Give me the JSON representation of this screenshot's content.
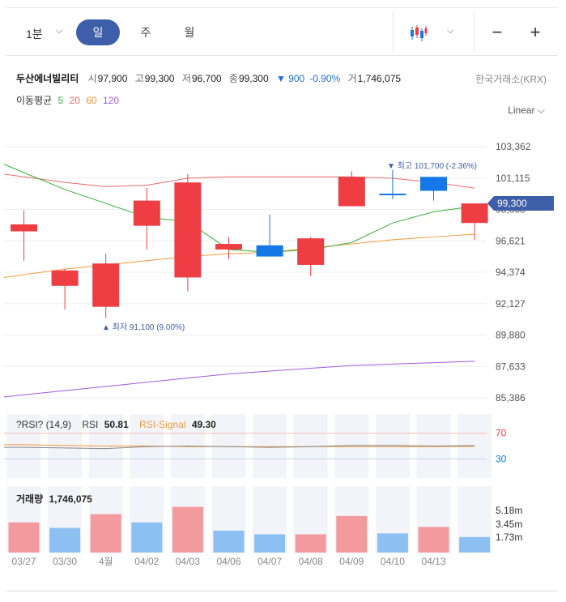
{
  "toolbar": {
    "interval_label": "1분",
    "tabs": [
      "일",
      "주",
      "월"
    ],
    "active_tab": "일",
    "chart_type_icon": "candlestick-icon",
    "zoom_out_label": "−",
    "zoom_in_label": "+"
  },
  "stock": {
    "name": "두산에너빌리티",
    "open_label": "시",
    "open": "97,900",
    "high_label": "고",
    "high": "99,300",
    "low_label": "저",
    "low": "96,700",
    "close_label": "종",
    "close": "99,300",
    "change": "▼ 900",
    "change_pct": "-0.90%",
    "volume_label": "거",
    "volume": "1,746,075",
    "exchange": "한국거래소(KRX)"
  },
  "ma_legend": {
    "label": "이동평균",
    "periods": [
      "5",
      "20",
      "60",
      "120"
    ]
  },
  "scale_label": "Linear",
  "colors": {
    "up": "#ee3d43",
    "down": "#1478e6",
    "ma5": "#36b236",
    "ma20": "#ee6a6a",
    "ma60": "#f09a3a",
    "ma120": "#a259e0",
    "vol_up": "#f29a9e",
    "vol_down": "#8cc0f2",
    "accent": "#3d5ea8"
  },
  "annotations": {
    "max_text": "▼ 최고 101,700 (-2.36%)",
    "min_text": "▲ 최저 91,100 (9.00%)",
    "last_price": "99,300"
  },
  "rsi_legend": {
    "title": "?RSI? (14,9)",
    "rsi_label": "RSI",
    "rsi_value": "50.81",
    "signal_label": "RSI-Signal",
    "signal_value": "49.30",
    "upper": "70",
    "lower": "30"
  },
  "volume_legend": {
    "label": "거래량",
    "value": "1,746,075",
    "ticks": [
      "5.18m",
      "3.45m",
      "1.73m"
    ]
  },
  "chart_data": {
    "type": "candlestick",
    "y_ticks": [
      103362,
      101115,
      98868,
      96621,
      94374,
      92127,
      89880,
      87633,
      85386
    ],
    "y_tick_labels": [
      "103,362",
      "101,115",
      "98,868",
      "96,621",
      "94,374",
      "92,127",
      "89,880",
      "87,633",
      "85,386"
    ],
    "ylim": [
      85386,
      103362
    ],
    "x_labels": [
      "03/27",
      "03/30",
      "4월",
      "04/02",
      "04/03",
      "04/06",
      "04/07",
      "04/08",
      "04/09",
      "04/10",
      "04/13"
    ],
    "candles": [
      {
        "open": 97300,
        "high": 98800,
        "low": 95200,
        "close": 97800
      },
      {
        "open": 93400,
        "high": 94600,
        "low": 91700,
        "close": 94500
      },
      {
        "open": 91900,
        "high": 95700,
        "low": 91100,
        "close": 95000
      },
      {
        "open": 97700,
        "high": 100400,
        "low": 96000,
        "close": 99500
      },
      {
        "open": 94000,
        "high": 101400,
        "low": 93000,
        "close": 100800
      },
      {
        "open": 96000,
        "high": 96900,
        "low": 95300,
        "close": 96400
      },
      {
        "open": 96300,
        "high": 98500,
        "low": 95500,
        "close": 95500
      },
      {
        "open": 94900,
        "high": 96900,
        "low": 94100,
        "close": 96800
      },
      {
        "open": 99100,
        "high": 101600,
        "low": 99100,
        "close": 101200
      },
      {
        "open": 100000,
        "high": 101700,
        "low": 99600,
        "close": 99900
      },
      {
        "open": 101200,
        "high": 101200,
        "low": 99500,
        "close": 100200
      },
      {
        "open": 97900,
        "high": 99300,
        "low": 96700,
        "close": 99300
      }
    ],
    "ma5": [
      101500,
      100300,
      99300,
      98300,
      98000,
      96000,
      95800,
      96000,
      96500,
      97900,
      98700,
      99100
    ],
    "ma20": [
      101200,
      100800,
      100500,
      100600,
      101100,
      101200,
      101200,
      101200,
      101200,
      101100,
      100800,
      100400
    ],
    "ma60": [
      94200,
      94600,
      94900,
      95200,
      95500,
      95700,
      95800,
      96100,
      96400,
      96700,
      96900,
      97100
    ],
    "ma120": [
      85600,
      85900,
      86200,
      86500,
      86800,
      87100,
      87300,
      87500,
      87700,
      87800,
      87900,
      88000
    ],
    "rsi": [
      48,
      47,
      46,
      49,
      50,
      49,
      48,
      49,
      51,
      51,
      50,
      50.81
    ],
    "rsi_signal": [
      52,
      51,
      50,
      50,
      49,
      49,
      49,
      49,
      49,
      49,
      49,
      49.3
    ],
    "volume": [
      3.3,
      2.7,
      4.2,
      3.3,
      5.0,
      2.4,
      2.0,
      2.0,
      4.0,
      2.1,
      2.8,
      1.7
    ],
    "volume_up": [
      true,
      false,
      true,
      false,
      true,
      false,
      false,
      true,
      true,
      false,
      true,
      false
    ]
  }
}
